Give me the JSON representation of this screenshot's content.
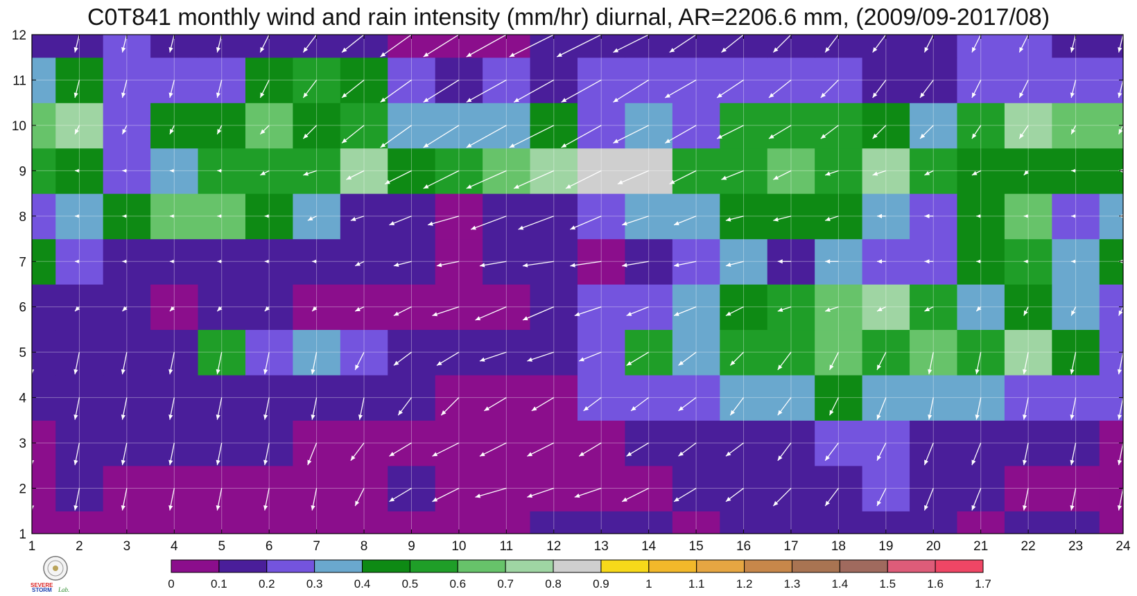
{
  "title": "C0T841 monthly wind and rain intensity (mm/hr) diurnal, AR=2206.6 mm, (2009/09-2017/08)",
  "chart_data": {
    "type": "heatmap",
    "subtype": "filled-contour-with-wind-vectors",
    "title": "C0T841 monthly wind and rain intensity (mm/hr) diurnal, AR=2206.6 mm, (2009/09-2017/08)",
    "xlabel": "",
    "ylabel": "",
    "x": [
      1,
      2,
      3,
      4,
      5,
      6,
      7,
      8,
      9,
      10,
      11,
      12,
      13,
      14,
      15,
      16,
      17,
      18,
      19,
      20,
      21,
      22,
      23,
      24
    ],
    "y": [
      1,
      2,
      3,
      4,
      5,
      6,
      7,
      8,
      9,
      10,
      11,
      12
    ],
    "xlim": [
      1,
      24
    ],
    "ylim": [
      1,
      12
    ],
    "grid": true,
    "colorbar": {
      "levels": [
        "0",
        "0.1",
        "0.2",
        "0.3",
        "0.4",
        "0.5",
        "0.6",
        "0.7",
        "0.8",
        "0.9",
        "1",
        "1.1",
        "1.2",
        "1.3",
        "1.4",
        "1.5",
        "1.6",
        "1.7"
      ],
      "colors": [
        "#8b0e8c",
        "#4a1e9a",
        "#7454de",
        "#6aa8ce",
        "#0e8a14",
        "#1f9e28",
        "#67c36a",
        "#9fd5a3",
        "#cfcfcf",
        "#f7d91a",
        "#f2b82a",
        "#e6a642",
        "#c7874a",
        "#a97452",
        "#a06a5e",
        "#de5c79",
        "#ef4665",
        "#d82f47"
      ],
      "placement": "bottom"
    },
    "intensity": [
      [
        0.08,
        0.07,
        0.05,
        0.05,
        0.05,
        0.07,
        0.09,
        0.08,
        0.09,
        0.08,
        0.09,
        0.12,
        0.15,
        0.12,
        0.09,
        0.11,
        0.12,
        0.11,
        0.12,
        0.13,
        0.09,
        0.11,
        0.11,
        0.09
      ],
      [
        0.08,
        0.12,
        0.09,
        0.08,
        0.06,
        0.06,
        0.05,
        0.05,
        0.13,
        0.07,
        0.05,
        0.07,
        0.08,
        0.07,
        0.12,
        0.15,
        0.15,
        0.15,
        0.26,
        0.15,
        0.12,
        0.07,
        0.05,
        0.04
      ],
      [
        0.09,
        0.12,
        0.11,
        0.1,
        0.12,
        0.16,
        0.09,
        0.08,
        0.06,
        0.05,
        0.05,
        0.06,
        0.07,
        0.1,
        0.15,
        0.18,
        0.15,
        0.26,
        0.24,
        0.15,
        0.13,
        0.14,
        0.11,
        0.09
      ],
      [
        0.14,
        0.15,
        0.14,
        0.14,
        0.15,
        0.15,
        0.12,
        0.11,
        0.1,
        0.09,
        0.09,
        0.08,
        0.2,
        0.22,
        0.28,
        0.35,
        0.38,
        0.4,
        0.36,
        0.33,
        0.32,
        0.28,
        0.25,
        0.2
      ],
      [
        0.14,
        0.15,
        0.13,
        0.18,
        0.58,
        0.26,
        0.32,
        0.22,
        0.17,
        0.12,
        0.13,
        0.15,
        0.25,
        0.55,
        0.35,
        0.5,
        0.6,
        0.62,
        0.6,
        0.62,
        0.55,
        0.72,
        0.48,
        0.3
      ],
      [
        0.14,
        0.15,
        0.1,
        0.08,
        0.14,
        0.1,
        0.09,
        0.08,
        0.08,
        0.05,
        0.04,
        0.12,
        0.22,
        0.28,
        0.32,
        0.42,
        0.55,
        0.65,
        0.72,
        0.5,
        0.38,
        0.45,
        0.35,
        0.27
      ],
      [
        0.45,
        0.25,
        0.14,
        0.14,
        0.15,
        0.13,
        0.14,
        0.12,
        0.14,
        0.05,
        0.14,
        0.12,
        0.08,
        0.18,
        0.25,
        0.32,
        0.12,
        0.36,
        0.22,
        0.28,
        0.45,
        0.5,
        0.38,
        0.42
      ],
      [
        0.3,
        0.32,
        0.42,
        0.62,
        0.68,
        0.45,
        0.35,
        0.15,
        0.12,
        0.08,
        0.1,
        0.18,
        0.25,
        0.35,
        0.38,
        0.45,
        0.48,
        0.45,
        0.38,
        0.22,
        0.45,
        0.62,
        0.22,
        0.32
      ],
      [
        0.55,
        0.45,
        0.3,
        0.35,
        0.55,
        0.6,
        0.55,
        0.72,
        0.45,
        0.5,
        0.7,
        0.75,
        0.82,
        0.85,
        0.6,
        0.58,
        0.65,
        0.6,
        0.75,
        0.6,
        0.45,
        0.4,
        0.45,
        0.42
      ],
      [
        0.68,
        0.75,
        0.3,
        0.45,
        0.4,
        0.65,
        0.42,
        0.5,
        0.38,
        0.32,
        0.32,
        0.42,
        0.3,
        0.32,
        0.3,
        0.58,
        0.6,
        0.5,
        0.45,
        0.35,
        0.6,
        0.72,
        0.62,
        0.62
      ],
      [
        0.35,
        0.45,
        0.28,
        0.25,
        0.2,
        0.45,
        0.52,
        0.4,
        0.22,
        0.18,
        0.2,
        0.17,
        0.25,
        0.28,
        0.2,
        0.2,
        0.22,
        0.2,
        0.18,
        0.15,
        0.28,
        0.3,
        0.25,
        0.25
      ],
      [
        0.12,
        0.14,
        0.2,
        0.14,
        0.12,
        0.15,
        0.15,
        0.12,
        0.08,
        0.05,
        0.05,
        0.12,
        0.15,
        0.12,
        0.12,
        0.12,
        0.12,
        0.12,
        0.12,
        0.14,
        0.28,
        0.22,
        0.18,
        0.14
      ]
    ],
    "wind": {
      "u": [
        [
          -0.1,
          -0.1,
          -0.1,
          -0.1,
          -0.1,
          -0.1,
          -0.1,
          -0.1,
          -0.3,
          -0.3,
          -0.4,
          -0.5,
          -0.5,
          -0.4,
          -0.4,
          -0.3,
          -0.3,
          -0.2,
          -0.2,
          -0.2,
          -0.2,
          -0.1,
          -0.1,
          -0.1
        ],
        [
          0,
          -0.1,
          -0.1,
          -0.1,
          -0.1,
          -0.1,
          -0.1,
          -0.2,
          -0.5,
          -0.6,
          -0.7,
          -0.6,
          -0.6,
          -0.6,
          -0.5,
          -0.4,
          -0.4,
          -0.3,
          -0.2,
          -0.2,
          -0.2,
          -0.1,
          -0.1,
          -0.1
        ],
        [
          0,
          -0.1,
          -0.1,
          -0.1,
          -0.1,
          -0.1,
          -0.2,
          -0.3,
          -0.5,
          -0.6,
          -0.6,
          -0.6,
          -0.5,
          -0.5,
          -0.4,
          -0.4,
          -0.3,
          -0.3,
          -0.2,
          -0.2,
          -0.2,
          -0.1,
          -0.1,
          -0.1
        ],
        [
          -0.1,
          -0.1,
          -0.1,
          -0.1,
          -0.1,
          -0.1,
          -0.1,
          -0.1,
          -0.3,
          -0.4,
          -0.5,
          -0.5,
          -0.4,
          -0.4,
          -0.4,
          -0.3,
          -0.3,
          -0.2,
          -0.2,
          -0.1,
          -0.1,
          -0.1,
          -0.1,
          -0.1
        ],
        [
          0,
          -0.1,
          -0.1,
          -0.1,
          -0.1,
          -0.1,
          -0.1,
          -0.2,
          -0.4,
          -0.5,
          -0.6,
          -0.6,
          -0.5,
          -0.5,
          -0.4,
          -0.3,
          -0.3,
          -0.2,
          -0.2,
          -0.1,
          -0.1,
          -0.1,
          -0.1,
          -0.1
        ],
        [
          -0.1,
          -0.1,
          -0.1,
          -0.1,
          -0.1,
          -0.1,
          -0.1,
          -0.2,
          -0.4,
          -0.6,
          -0.7,
          -0.7,
          -0.6,
          -0.5,
          -0.5,
          -0.4,
          -0.3,
          -0.3,
          -0.2,
          -0.2,
          -0.1,
          -0.1,
          -0.1,
          -0.1
        ],
        [
          -0.1,
          -0.1,
          -0.1,
          -0.1,
          -0.1,
          -0.1,
          -0.1,
          -0.2,
          -0.4,
          -0.5,
          -0.6,
          -0.7,
          -0.7,
          -0.6,
          -0.5,
          -0.4,
          -0.3,
          -0.3,
          -0.2,
          -0.2,
          -0.1,
          -0.1,
          -0.1,
          -0.1
        ],
        [
          -0.1,
          -0.1,
          -0.1,
          -0.1,
          -0.1,
          -0.1,
          -0.2,
          -0.3,
          -0.5,
          -0.7,
          -0.8,
          -0.8,
          -0.7,
          -0.6,
          -0.5,
          -0.4,
          -0.4,
          -0.3,
          -0.2,
          -0.2,
          -0.1,
          -0.1,
          -0.1,
          -0.1
        ],
        [
          -0.1,
          -0.1,
          -0.1,
          -0.1,
          -0.1,
          -0.2,
          -0.3,
          -0.4,
          -0.6,
          -0.8,
          -0.9,
          -0.9,
          -0.8,
          -0.7,
          -0.6,
          -0.5,
          -0.4,
          -0.3,
          -0.3,
          -0.2,
          -0.2,
          -0.1,
          -0.1,
          -0.1
        ],
        [
          -0.1,
          -0.1,
          -0.1,
          -0.1,
          -0.1,
          -0.2,
          -0.3,
          -0.5,
          -0.7,
          -0.8,
          -0.9,
          -1.0,
          -0.9,
          -0.8,
          -0.7,
          -0.6,
          -0.5,
          -0.4,
          -0.3,
          -0.3,
          -0.2,
          -0.2,
          -0.1,
          -0.1
        ],
        [
          -0.1,
          -0.1,
          -0.1,
          -0.1,
          -0.1,
          -0.2,
          -0.3,
          -0.5,
          -0.7,
          -0.8,
          -0.9,
          -0.9,
          -0.9,
          -0.8,
          -0.7,
          -0.6,
          -0.5,
          -0.4,
          -0.3,
          -0.3,
          -0.2,
          -0.2,
          -0.1,
          -0.1
        ],
        [
          -0.1,
          -0.1,
          -0.1,
          -0.1,
          -0.1,
          -0.2,
          -0.3,
          -0.5,
          -0.7,
          -0.8,
          -0.9,
          -1.0,
          -1.0,
          -0.8,
          -0.6,
          -0.5,
          -0.4,
          -0.3,
          -0.3,
          -0.2,
          -0.2,
          -0.2,
          -0.1,
          -0.1
        ]
      ],
      "v": [
        [
          -0.5,
          -0.5,
          -0.5,
          -0.5,
          -0.5,
          -0.5,
          -0.5,
          -0.5,
          -0.4,
          -0.3,
          -0.3,
          -0.3,
          -0.3,
          -0.3,
          -0.3,
          -0.4,
          -0.4,
          -0.4,
          -0.5,
          -0.5,
          -0.5,
          -0.5,
          -0.5,
          -0.5
        ],
        [
          -0.5,
          -0.5,
          -0.5,
          -0.5,
          -0.5,
          -0.5,
          -0.5,
          -0.4,
          -0.3,
          -0.3,
          -0.2,
          -0.2,
          -0.2,
          -0.3,
          -0.3,
          -0.3,
          -0.4,
          -0.4,
          -0.4,
          -0.5,
          -0.5,
          -0.5,
          -0.5,
          -0.5
        ],
        [
          -0.5,
          -0.5,
          -0.5,
          -0.5,
          -0.5,
          -0.5,
          -0.5,
          -0.4,
          -0.3,
          -0.3,
          -0.3,
          -0.3,
          -0.3,
          -0.3,
          -0.3,
          -0.3,
          -0.4,
          -0.4,
          -0.4,
          -0.5,
          -0.5,
          -0.5,
          -0.5,
          -0.5
        ],
        [
          -0.5,
          -0.5,
          -0.5,
          -0.5,
          -0.5,
          -0.5,
          -0.5,
          -0.5,
          -0.4,
          -0.4,
          -0.3,
          -0.3,
          -0.3,
          -0.3,
          -0.3,
          -0.4,
          -0.4,
          -0.4,
          -0.5,
          -0.5,
          -0.5,
          -0.5,
          -0.5,
          -0.5
        ],
        [
          -0.5,
          -0.5,
          -0.5,
          -0.5,
          -0.5,
          -0.5,
          -0.5,
          -0.4,
          -0.3,
          -0.3,
          -0.2,
          -0.2,
          -0.2,
          -0.3,
          -0.3,
          -0.3,
          -0.4,
          -0.4,
          -0.4,
          -0.5,
          -0.5,
          -0.5,
          -0.5,
          -0.5
        ],
        [
          -0.1,
          -0.1,
          -0.1,
          -0.1,
          -0.1,
          -0.1,
          -0.1,
          -0.1,
          -0.2,
          -0.2,
          -0.3,
          -0.3,
          -0.2,
          -0.2,
          -0.2,
          -0.2,
          -0.1,
          -0.1,
          -0.1,
          -0.1,
          -0.1,
          -0.2,
          -0.2,
          -0.2
        ],
        [
          0,
          0,
          0,
          0,
          0,
          0,
          0,
          -0.1,
          -0.1,
          -0.1,
          -0.1,
          -0.1,
          -0.1,
          -0.1,
          -0.1,
          -0.1,
          0,
          0,
          0,
          0,
          0,
          0,
          0,
          0
        ],
        [
          0,
          0,
          0,
          0,
          0,
          0,
          -0.1,
          -0.1,
          -0.2,
          -0.2,
          -0.3,
          -0.3,
          -0.3,
          -0.2,
          -0.2,
          -0.1,
          -0.1,
          -0.1,
          0,
          0,
          0,
          0,
          0,
          0
        ],
        [
          0,
          0,
          0,
          0,
          0,
          -0.1,
          -0.1,
          -0.2,
          -0.3,
          -0.4,
          -0.4,
          -0.4,
          -0.4,
          -0.3,
          -0.3,
          -0.2,
          -0.2,
          -0.1,
          -0.1,
          -0.1,
          -0.1,
          -0.1,
          0,
          0
        ],
        [
          -0.2,
          -0.2,
          -0.2,
          -0.2,
          -0.2,
          -0.2,
          -0.3,
          -0.4,
          -0.5,
          -0.5,
          -0.5,
          -0.5,
          -0.5,
          -0.4,
          -0.4,
          -0.3,
          -0.3,
          -0.3,
          -0.3,
          -0.3,
          -0.3,
          -0.3,
          -0.2,
          -0.2
        ],
        [
          -0.4,
          -0.4,
          -0.4,
          -0.4,
          -0.4,
          -0.4,
          -0.4,
          -0.4,
          -0.5,
          -0.5,
          -0.5,
          -0.5,
          -0.5,
          -0.5,
          -0.4,
          -0.4,
          -0.4,
          -0.4,
          -0.4,
          -0.4,
          -0.4,
          -0.4,
          -0.4,
          -0.4
        ],
        [
          -0.4,
          -0.4,
          -0.4,
          -0.4,
          -0.4,
          -0.4,
          -0.4,
          -0.4,
          -0.5,
          -0.5,
          -0.5,
          -0.5,
          -0.5,
          -0.4,
          -0.4,
          -0.4,
          -0.4,
          -0.4,
          -0.4,
          -0.4,
          -0.4,
          -0.4,
          -0.4,
          -0.4
        ]
      ]
    }
  },
  "logo": {
    "text_line1": "SEVERE",
    "text_line2": "STORM",
    "text_line3": "Lab.",
    "icon": "severe-storm-lab-logo"
  }
}
